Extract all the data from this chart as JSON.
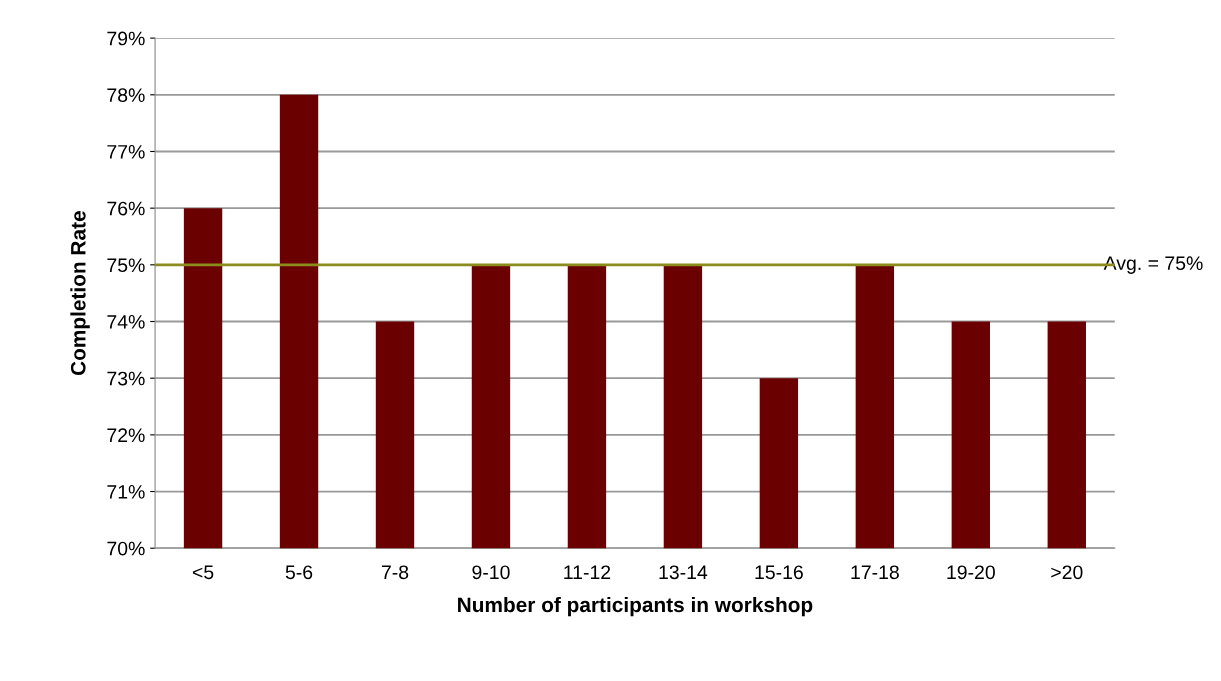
{
  "chart_data": {
    "type": "bar",
    "xlabel": "Number of participants in workshop",
    "ylabel": "Completion Rate",
    "categories": [
      "<5",
      "5-6",
      "7-8",
      "9-10",
      "11-12",
      "13-14",
      "15-16",
      "17-18",
      "19-20",
      ">20"
    ],
    "values": [
      76,
      78,
      74,
      75,
      75,
      75,
      73,
      75,
      74,
      74
    ],
    "color": "#6b0000",
    "ylim": [
      70,
      79
    ],
    "yticks": [
      {
        "value": 70,
        "label": "70%"
      },
      {
        "value": 71,
        "label": "71%"
      },
      {
        "value": 72,
        "label": "72%"
      },
      {
        "value": 73,
        "label": "73%"
      },
      {
        "value": 74,
        "label": "74%"
      },
      {
        "value": 75,
        "label": "75%"
      },
      {
        "value": 76,
        "label": "76%"
      },
      {
        "value": 77,
        "label": "77%"
      },
      {
        "value": 78,
        "label": "78%"
      },
      {
        "value": 79,
        "label": "79%"
      }
    ],
    "grid": "y",
    "ref_lines": [
      {
        "axis": "y",
        "value": 75,
        "label": "Avg. = 75%",
        "color": "#8b8b1e"
      }
    ]
  }
}
